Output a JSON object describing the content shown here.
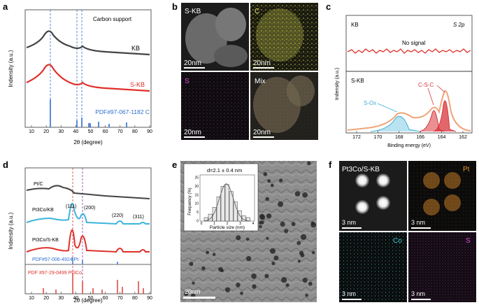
{
  "panels": {
    "a": {
      "letter": "a",
      "title": "Carbon support",
      "ylabel": "Indensity (a.u.)",
      "xlabel": "2θ (degree)",
      "xticks": [
        "10",
        "20",
        "30",
        "40",
        "50",
        "60",
        "70",
        "80",
        "90"
      ],
      "series": [
        {
          "name": "KB",
          "color": "#444444"
        },
        {
          "name": "S-KB",
          "color": "#e0302a"
        }
      ],
      "ref_label": "PDF#97-067-1182 C",
      "ref_color": "#2f6fd0"
    },
    "b": {
      "letter": "b",
      "tiles": [
        {
          "label": "S-KB",
          "scale": "20nm",
          "color": "#ffffff"
        },
        {
          "label": "C",
          "scale": "20nm",
          "color": "#e6e86a"
        },
        {
          "label": "S",
          "scale": "20nm",
          "color": "#d64bd6"
        },
        {
          "label": "Mix",
          "scale": "20nm",
          "color": "#ffffff"
        }
      ]
    },
    "c": {
      "letter": "c",
      "top_label": "KB",
      "orbital": "S 2p",
      "no_signal": "No signal",
      "bottom_label": "S-KB",
      "ylabel": "Indensity (a.u.)",
      "xlabel": "Binding energy (eV)",
      "xticks": [
        "172",
        "170",
        "168",
        "166",
        "164",
        "162"
      ],
      "sox_label": "S-Ox",
      "csc_label": "C-S-C",
      "sox_color": "#3ab0d8",
      "csc_color": "#d8343b"
    },
    "d": {
      "letter": "d",
      "ylabel": "Indensity (a.u.)",
      "xlabel": "2θ (degree)",
      "xticks": [
        "10",
        "20",
        "30",
        "40",
        "50",
        "60",
        "70",
        "80",
        "90"
      ],
      "series": [
        {
          "name": "Pt/C",
          "color": "#444444"
        },
        {
          "name": "Pt3Co/KB",
          "color": "#3cb4dc"
        },
        {
          "name": "Pt3Co/S-KB",
          "color": "#e0302a"
        }
      ],
      "peaks": [
        "(111)",
        "(200)",
        "(220)",
        "(311)"
      ],
      "ref1": "PDF#97-006-4924 Pt",
      "ref2": "PDF #97-29-0499 Pt3Co",
      "ref1_color": "#2f6fd0",
      "ref2_color": "#e0302a"
    },
    "e": {
      "letter": "e",
      "inset_title": "d=2.1 ± 0.4 nm",
      "inset_ylabel": "Frequency (%)",
      "inset_xlabel": "Particle size (nm)",
      "inset_yticks": [
        "0",
        "5",
        "10",
        "15",
        "20",
        "25"
      ],
      "inset_xticks": [
        "0",
        "1",
        "2",
        "3",
        "4"
      ],
      "histogram": [
        2,
        4,
        8,
        14,
        20,
        21,
        17,
        11,
        6,
        3,
        2
      ],
      "scale": "20nm"
    },
    "f": {
      "letter": "f",
      "tiles": [
        {
          "label": "Pt3Co/S-KB",
          "scale": "3 nm",
          "color": "#ffffff"
        },
        {
          "label": "Pt",
          "scale": "3 nm",
          "color": "#e8932c"
        },
        {
          "label": "Co",
          "scale": "3 nm",
          "color": "#39c8d8"
        },
        {
          "label": "S",
          "scale": "3 nm",
          "color": "#d64bd6"
        }
      ]
    }
  }
}
